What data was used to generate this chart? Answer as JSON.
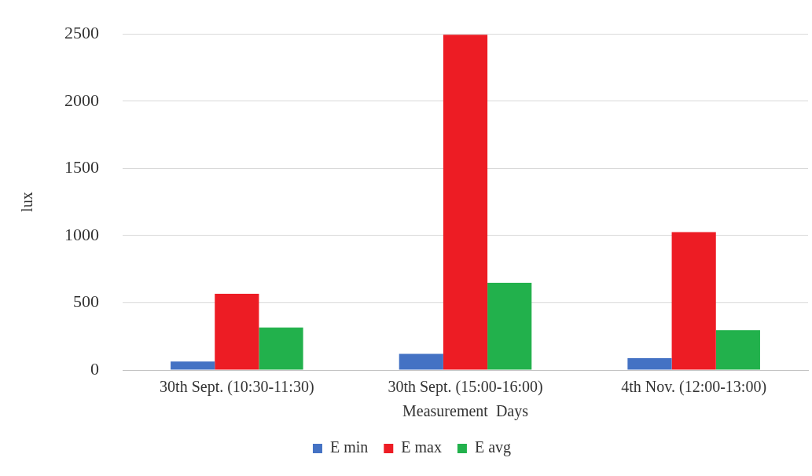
{
  "chart_data": {
    "type": "bar",
    "xlabel": "Measurement  Days",
    "ylabel": "lux",
    "categories": [
      "30th Sept. (10:30-11:30)",
      "30th Sept. (15:00-16:00)",
      "4th Nov. (12:00-13:00)"
    ],
    "series": [
      {
        "name": "E min",
        "color": "#4472c4",
        "values": [
          63,
          120,
          88
        ]
      },
      {
        "name": "E max",
        "color": "#ed1c24",
        "values": [
          567,
          2494,
          1026
        ]
      },
      {
        "name": "E avg",
        "color": "#22b14c",
        "values": [
          315,
          649,
          296
        ]
      }
    ],
    "ylim": [
      0,
      2500
    ],
    "yticks": [
      0,
      500,
      1000,
      1500,
      2000,
      2500
    ],
    "grid": "y",
    "legend": "bottom"
  }
}
